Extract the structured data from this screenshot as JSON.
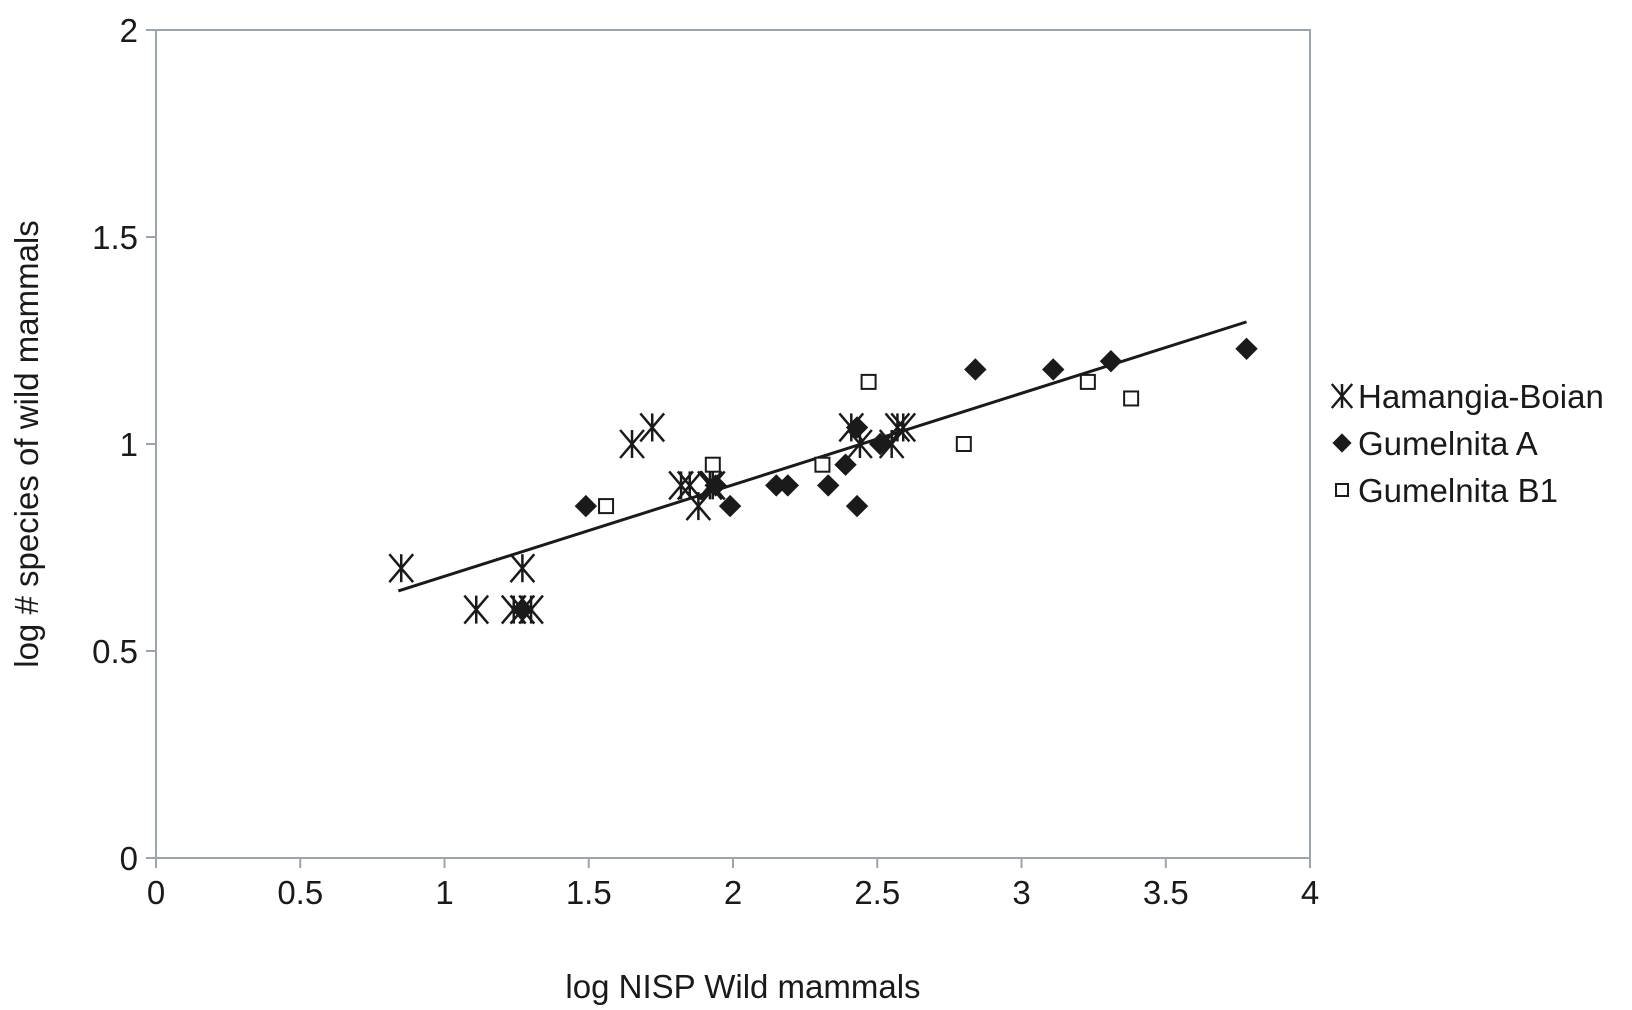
{
  "chart_data": {
    "type": "scatter",
    "title": "",
    "xlabel": "log NISP Wild mammals",
    "ylabel": "log # species of wild mammals",
    "xlim": [
      0,
      4
    ],
    "ylim": [
      0,
      2
    ],
    "x_ticks": [
      "0",
      "0.5",
      "1",
      "1.5",
      "2",
      "2.5",
      "3",
      "3.5",
      "4"
    ],
    "y_ticks": [
      "0",
      "0.5",
      "1",
      "1.5",
      "2"
    ],
    "grid": false,
    "legend_position": "right",
    "series": [
      {
        "name": "Hamangia-Boian",
        "marker": "asterisk",
        "color": "#1a1a1a",
        "x": [
          0.85,
          1.11,
          1.24,
          1.27,
          1.27,
          1.3,
          1.65,
          1.72,
          1.82,
          1.85,
          1.88,
          1.92,
          1.93,
          2.41,
          2.44,
          2.55,
          2.57,
          2.59
        ],
        "y": [
          0.7,
          0.6,
          0.6,
          0.7,
          0.6,
          0.6,
          1.0,
          1.04,
          0.9,
          0.9,
          0.85,
          0.9,
          0.9,
          1.04,
          1.0,
          1.0,
          1.04,
          1.04
        ]
      },
      {
        "name": "Gumelnita A",
        "marker": "diamond",
        "color": "#1a1a1a",
        "x": [
          1.27,
          1.49,
          1.94,
          1.99,
          2.15,
          2.19,
          2.33,
          2.39,
          2.43,
          2.43,
          2.51,
          2.84,
          3.11,
          3.31,
          3.78
        ],
        "y": [
          0.6,
          0.85,
          0.9,
          0.85,
          0.9,
          0.9,
          0.9,
          0.95,
          0.85,
          1.04,
          1.0,
          1.18,
          1.18,
          1.2,
          1.23
        ]
      },
      {
        "name": "Gumelnita B1",
        "marker": "square-open",
        "color": "#1a1a1a",
        "x": [
          1.56,
          1.93,
          2.31,
          2.47,
          2.8,
          3.23,
          3.38
        ],
        "y": [
          0.85,
          0.95,
          0.95,
          1.15,
          1.0,
          1.15,
          1.11
        ]
      }
    ],
    "trendline": {
      "x": [
        0.84,
        3.78
      ],
      "y": [
        0.645,
        1.295
      ]
    }
  }
}
